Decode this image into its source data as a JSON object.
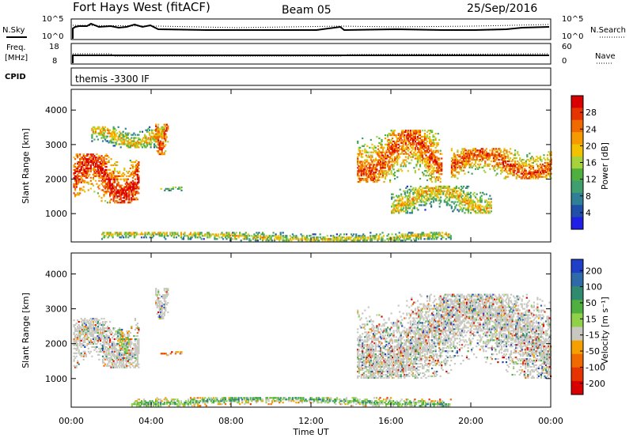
{
  "header": {
    "station": "Fort Hays West (fitACF)",
    "beam": "Beam 05",
    "date": "25/Sep/2016"
  },
  "strips": {
    "nsky": {
      "label": "N.Sky",
      "ticks": [
        "10^5",
        "10^0"
      ],
      "right_label": "N.Search",
      "right_ticks": [
        "10^5",
        "10^0"
      ]
    },
    "freq": {
      "label_line1": "Freq.",
      "label_line2": "[MHz]",
      "ticks": [
        "18",
        "8"
      ],
      "right_label": "Nave",
      "right_ticks": [
        "60",
        "0"
      ]
    },
    "cpid": {
      "label": "CPID",
      "value": "themis -3300 IF"
    }
  },
  "colors": {
    "power_scale": [
      "#1f1fe6",
      "#1f4fa8",
      "#2f7f96",
      "#3f9f6f",
      "#4faf3f",
      "#a8d23a",
      "#f2c200",
      "#f59a00",
      "#f06a00",
      "#e63300",
      "#d80000"
    ],
    "velocity_scale": [
      "#d80000",
      "#e63300",
      "#f06a00",
      "#f5a000",
      "#c8c8c0",
      "#8fd24a",
      "#4faf3f",
      "#2f8a6f",
      "#2f6aa8",
      "#1f3fc8"
    ],
    "ground_scatter": "#c8c8c0"
  },
  "chart_data": [
    {
      "type": "heatmap",
      "panel": "power",
      "xlabel": "",
      "ylabel": "Slant Range [km]",
      "x_ticks": [
        "00:00",
        "04:00",
        "08:00",
        "12:00",
        "16:00",
        "20:00",
        "00:00"
      ],
      "y_ticks": [
        "1000",
        "2000",
        "3000",
        "4000"
      ],
      "xlim_hours": [
        0,
        24
      ],
      "ylim_km": [
        180,
        4600
      ],
      "colorbar_label": "Power [dB]",
      "colorbar_ticks": [
        "4",
        "8",
        "12",
        "16",
        "20",
        "24",
        "28"
      ],
      "scatter_bands": [
        {
          "t_start": 0.1,
          "t_end": 3.4,
          "r_start": 1300,
          "r_end": 2700,
          "level": 0.6
        },
        {
          "t_start": 1.0,
          "t_end": 4.6,
          "r_start": 2900,
          "r_end": 3500,
          "level": 0.3
        },
        {
          "t_start": 4.2,
          "t_end": 4.8,
          "r_start": 2700,
          "r_end": 3600,
          "level": 0.55
        },
        {
          "t_start": 4.4,
          "t_end": 5.5,
          "r_start": 1650,
          "r_end": 1750,
          "level": 0.15
        },
        {
          "t_start": 14.3,
          "t_end": 18.5,
          "r_start": 1900,
          "r_end": 3400,
          "level": 0.5
        },
        {
          "t_start": 16.0,
          "t_end": 21.0,
          "r_start": 1000,
          "r_end": 1800,
          "level": 0.3
        },
        {
          "t_start": 19.0,
          "t_end": 24.0,
          "r_start": 2000,
          "r_end": 2900,
          "level": 0.5
        },
        {
          "t_start": 1.5,
          "t_end": 19.0,
          "r_start": 200,
          "r_end": 450,
          "level": 0.25
        }
      ]
    },
    {
      "type": "heatmap",
      "panel": "velocity",
      "xlabel": "Time UT",
      "ylabel": "Slant Range [km]",
      "x_ticks": [
        "00:00",
        "04:00",
        "08:00",
        "12:00",
        "16:00",
        "20:00",
        "00:00"
      ],
      "y_ticks": [
        "1000",
        "2000",
        "3000",
        "4000"
      ],
      "xlim_hours": [
        0,
        24
      ],
      "ylim_km": [
        180,
        4600
      ],
      "colorbar_label": "Velocity [m s⁻¹]",
      "colorbar_ticks": [
        "200",
        "100",
        "50",
        "15",
        "-15",
        "-50",
        "-100",
        "-200"
      ],
      "scatter_bands": [
        {
          "t_start": 0.1,
          "t_end": 3.4,
          "r_start": 1300,
          "r_end": 2700,
          "level": 0.45
        },
        {
          "t_start": 2.3,
          "t_end": 2.9,
          "r_start": 1700,
          "r_end": 2400,
          "level": 0.3
        },
        {
          "t_start": 4.2,
          "t_end": 4.8,
          "r_start": 2700,
          "r_end": 3600,
          "level": 0.45
        },
        {
          "t_start": 4.4,
          "t_end": 5.5,
          "r_start": 1650,
          "r_end": 1750,
          "level": 0.05
        },
        {
          "t_start": 14.3,
          "t_end": 24.0,
          "r_start": 1000,
          "r_end": 3400,
          "level": 0.45
        },
        {
          "t_start": 3.0,
          "t_end": 19.0,
          "r_start": 200,
          "r_end": 450,
          "level": 0.35
        }
      ]
    }
  ]
}
